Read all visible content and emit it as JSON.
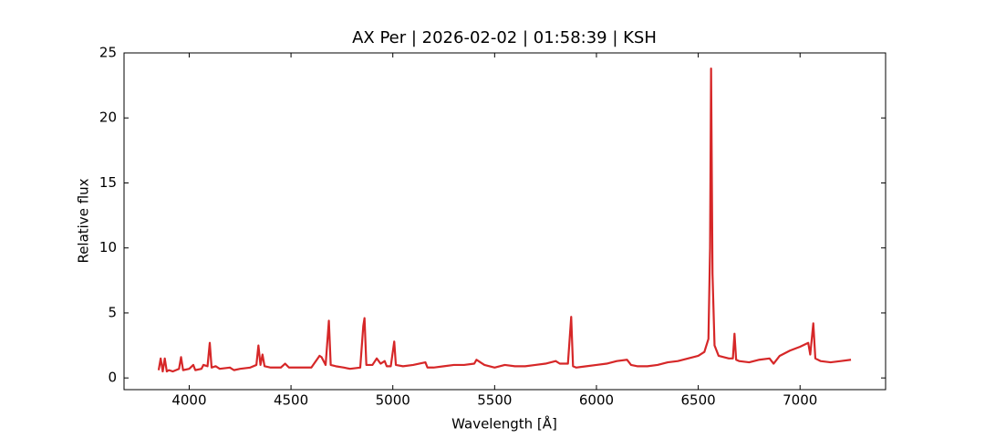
{
  "chart_data": {
    "type": "line",
    "title": "AX Per | 2026-02-02 | 01:58:39 | KSH",
    "x_label": "Wavelength [Å]",
    "y_label": "Relative flux",
    "color": "#d62728",
    "xlim": [
      3680,
      7420
    ],
    "ylim": [
      -0.9,
      25
    ],
    "xticks": [
      4000,
      4500,
      5000,
      5500,
      6000,
      6500,
      7000
    ],
    "yticks": [
      0,
      5,
      10,
      15,
      20,
      25
    ],
    "x": [
      3850,
      3860,
      3870,
      3880,
      3890,
      3900,
      3920,
      3950,
      3960,
      3970,
      4000,
      4020,
      4030,
      4060,
      4070,
      4090,
      4101,
      4110,
      4130,
      4150,
      4200,
      4220,
      4250,
      4300,
      4330,
      4340,
      4350,
      4360,
      4370,
      4400,
      4450,
      4471,
      4490,
      4550,
      4600,
      4640,
      4650,
      4670,
      4686,
      4695,
      4720,
      4760,
      4790,
      4840,
      4855,
      4861,
      4870,
      4900,
      4921,
      4940,
      4960,
      4970,
      4990,
      5007,
      5015,
      5050,
      5100,
      5160,
      5170,
      5200,
      5250,
      5300,
      5350,
      5400,
      5411,
      5430,
      5450,
      5500,
      5550,
      5600,
      5650,
      5700,
      5750,
      5800,
      5820,
      5860,
      5876,
      5885,
      5900,
      5950,
      6000,
      6050,
      6100,
      6150,
      6170,
      6200,
      6250,
      6300,
      6350,
      6400,
      6450,
      6500,
      6530,
      6550,
      6558,
      6563,
      6570,
      6580,
      6600,
      6650,
      6670,
      6678,
      6686,
      6700,
      6750,
      6800,
      6850,
      6870,
      6900,
      6950,
      7000,
      7040,
      7050,
      7065,
      7075,
      7100,
      7150,
      7200,
      7250
    ],
    "values": [
      0.6,
      1.5,
      0.5,
      1.5,
      0.5,
      0.6,
      0.5,
      0.7,
      1.6,
      0.6,
      0.7,
      1.0,
      0.6,
      0.7,
      1.0,
      0.9,
      2.7,
      0.8,
      0.9,
      0.7,
      0.8,
      0.6,
      0.7,
      0.8,
      1.0,
      2.5,
      1.0,
      1.8,
      0.9,
      0.8,
      0.8,
      1.1,
      0.8,
      0.8,
      0.8,
      1.7,
      1.6,
      1.0,
      4.4,
      1.0,
      0.9,
      0.8,
      0.7,
      0.8,
      4.0,
      4.6,
      1.0,
      1.0,
      1.5,
      1.1,
      1.3,
      0.9,
      0.9,
      2.8,
      1.0,
      0.9,
      1.0,
      1.2,
      0.8,
      0.8,
      0.9,
      1.0,
      1.0,
      1.1,
      1.4,
      1.2,
      1.0,
      0.8,
      1.0,
      0.9,
      0.9,
      1.0,
      1.1,
      1.3,
      1.1,
      1.1,
      4.7,
      0.9,
      0.8,
      0.9,
      1.0,
      1.1,
      1.3,
      1.4,
      1.0,
      0.9,
      0.9,
      1.0,
      1.2,
      1.3,
      1.5,
      1.7,
      2.0,
      3.0,
      10.0,
      23.8,
      8.0,
      2.5,
      1.7,
      1.5,
      1.5,
      3.4,
      1.4,
      1.3,
      1.2,
      1.4,
      1.5,
      1.1,
      1.7,
      2.1,
      2.4,
      2.7,
      1.8,
      4.2,
      1.5,
      1.3,
      1.2,
      1.3,
      1.4
    ]
  }
}
